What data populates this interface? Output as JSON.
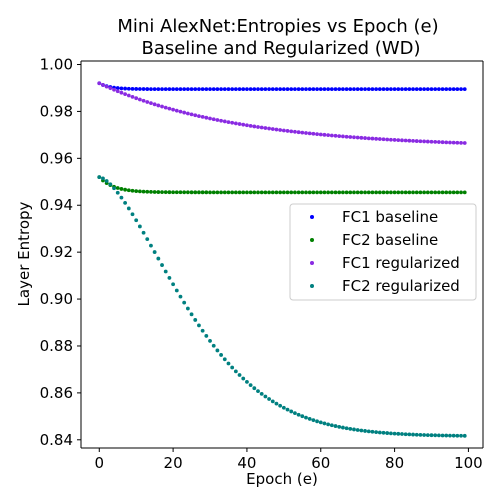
{
  "chart_data": {
    "type": "scatter",
    "title": "Mini AlexNet:Entropies vs Epoch (e)",
    "subtitle": "Baseline and Regularized (WD)",
    "xlabel": "Epoch (e)",
    "ylabel": "Layer Entropy",
    "xlim": [
      -4.95,
      103.95
    ],
    "ylim": [
      0.8365,
      1.0015
    ],
    "x_ticks": [
      0,
      20,
      40,
      60,
      80,
      100
    ],
    "y_ticks": [
      0.84,
      0.86,
      0.88,
      0.9,
      0.92,
      0.94,
      0.96,
      0.98,
      1.0
    ],
    "x_tick_labels": [
      "0",
      "20",
      "40",
      "60",
      "80",
      "100"
    ],
    "y_tick_labels": [
      "0.84",
      "0.86",
      "0.88",
      "0.90",
      "0.92",
      "0.94",
      "0.96",
      "0.98",
      "1.00"
    ],
    "x_start": 0,
    "x_end": 99,
    "grid": false,
    "legend_position": "center-right",
    "series": [
      {
        "name": "FC1 baseline",
        "color": "#0000ff",
        "start": 0.992,
        "end": 0.9895,
        "tau": 3,
        "power": 1
      },
      {
        "name": "FC2 baseline",
        "color": "#008000",
        "start": 0.952,
        "end": 0.9455,
        "tau": 4,
        "power": 1
      },
      {
        "name": "FC1 regularized",
        "color": "#8a2be2",
        "start": 0.992,
        "end": 0.9645,
        "tau": 38,
        "power": 1
      },
      {
        "name": "FC2 regularized",
        "color": "#008080",
        "start": 0.952,
        "end": 0.8415,
        "tau": 30,
        "power": 1.55
      }
    ]
  }
}
